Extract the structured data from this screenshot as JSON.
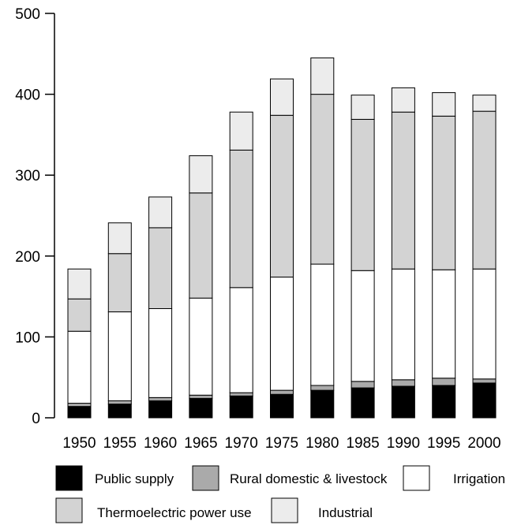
{
  "chart_data": {
    "type": "bar",
    "stacked": true,
    "title": "",
    "xlabel": "",
    "ylabel": "",
    "ylim": [
      0,
      500
    ],
    "yticks": [
      "0",
      "100",
      "200",
      "300",
      "400",
      "500"
    ],
    "categories": [
      "1950",
      "1955",
      "1960",
      "1965",
      "1970",
      "1975",
      "1980",
      "1985",
      "1990",
      "1995",
      "2000"
    ],
    "series": [
      {
        "name": "Public supply",
        "color": "#000000",
        "values": [
          14,
          17,
          21,
          24,
          27,
          29,
          34,
          37,
          39,
          40,
          43
        ]
      },
      {
        "name": "Rural domestic & livestock",
        "color": "#aaaaaa",
        "values": [
          4,
          4,
          4,
          4,
          4,
          5,
          6,
          8,
          8,
          9,
          5
        ]
      },
      {
        "name": "Irrigation",
        "color": "#ffffff",
        "values": [
          89,
          110,
          110,
          120,
          130,
          140,
          150,
          137,
          137,
          134,
          136
        ]
      },
      {
        "name": "Thermoelectric power use",
        "color": "#d3d3d3",
        "values": [
          40,
          72,
          100,
          130,
          170,
          200,
          210,
          187,
          194,
          190,
          195
        ]
      },
      {
        "name": "Industrial",
        "color": "#ececec",
        "values": [
          37,
          38,
          38,
          46,
          47,
          45,
          45,
          30,
          30,
          29,
          20
        ]
      }
    ],
    "grid": false,
    "legend_position": "bottom"
  }
}
